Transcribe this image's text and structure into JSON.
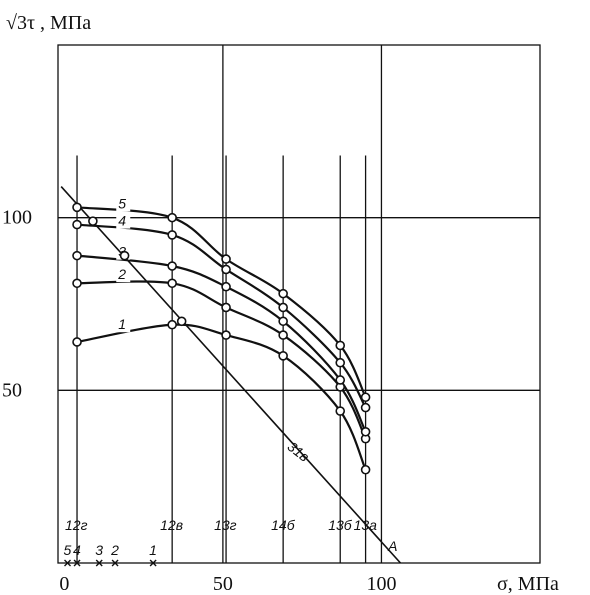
{
  "chart_data": {
    "type": "line",
    "title": "",
    "xlabel": "σ, МПа",
    "ylabel": "√3τ , МПа",
    "xlim": [
      -2,
      150
    ],
    "ylim": [
      0,
      150
    ],
    "x_ticks": [
      "0",
      "50",
      "100"
    ],
    "y_ticks": [
      "50",
      "100"
    ],
    "grid": true,
    "verticals": [
      {
        "label": "12г",
        "x": 4
      },
      {
        "label": "12в",
        "x": 34
      },
      {
        "label": "13г",
        "x": 51
      },
      {
        "label": "14б",
        "x": 69
      },
      {
        "label": "13б",
        "x": 87
      },
      {
        "label": "13а",
        "x": 95
      }
    ],
    "series": [
      {
        "name": "1",
        "x": [
          4,
          34,
          51,
          69,
          87,
          95
        ],
        "y": [
          64,
          69,
          66,
          60,
          44,
          27
        ]
      },
      {
        "name": "2",
        "x": [
          4,
          34,
          51,
          69,
          87,
          95
        ],
        "y": [
          81,
          81,
          74,
          66,
          51,
          36
        ]
      },
      {
        "name": "3",
        "x": [
          4,
          34,
          51,
          69,
          87,
          95
        ],
        "y": [
          89,
          86,
          80,
          70,
          53,
          38
        ]
      },
      {
        "name": "4",
        "x": [
          4,
          34,
          51,
          69,
          87,
          95
        ],
        "y": [
          98,
          95,
          85,
          74,
          58,
          45
        ]
      },
      {
        "name": "5",
        "x": [
          4,
          34,
          51,
          69,
          87,
          95
        ],
        "y": [
          103,
          100,
          88,
          78,
          63,
          48
        ]
      }
    ],
    "line_31v": {
      "label": "31в",
      "x": [
        -1,
        106
      ],
      "y": [
        109,
        0
      ],
      "points_x": [
        9,
        19,
        37
      ],
      "points_y": [
        99,
        89,
        70
      ]
    },
    "x_axis_marks": [
      {
        "label": "5",
        "x": 1
      },
      {
        "label": "4",
        "x": 4
      },
      {
        "label": "3",
        "x": 11
      },
      {
        "label": "2",
        "x": 16
      },
      {
        "label": "1",
        "x": 28
      }
    ],
    "point_A": {
      "label": "A",
      "x": 104
    }
  }
}
